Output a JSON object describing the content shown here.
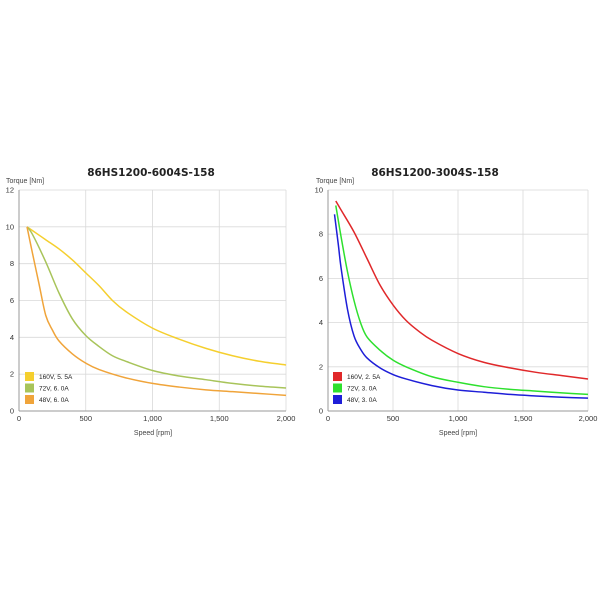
{
  "chart_data": [
    {
      "type": "line",
      "title": "86HS1200-6004S-158",
      "xlabel": "Speed [rpm]",
      "ylabel": "Torque  [Nm]",
      "xlim": [
        0,
        2000
      ],
      "ylim": [
        0,
        12
      ],
      "xticks": [
        0,
        500,
        1000,
        1500,
        2000
      ],
      "xtick_labels": [
        "0",
        "500",
        "1,000",
        "1,500",
        "2,000"
      ],
      "yticks": [
        0,
        2,
        4,
        6,
        8,
        10,
        12
      ],
      "ytick_labels": [
        "0",
        "2",
        "4",
        "6",
        "8",
        "10",
        "12"
      ],
      "grid": true,
      "legend_position": "bottom-left",
      "series": [
        {
          "name": "160V, 5. 5A",
          "color": "#F5CF2E",
          "x": [
            60,
            100,
            200,
            300,
            400,
            500,
            600,
            700,
            800,
            1000,
            1200,
            1400,
            1600,
            1800,
            2000
          ],
          "y": [
            10.0,
            9.8,
            9.3,
            8.8,
            8.2,
            7.5,
            6.8,
            6.0,
            5.4,
            4.5,
            3.9,
            3.4,
            3.0,
            2.7,
            2.5
          ]
        },
        {
          "name": "72V, 6. 0A",
          "color": "#A8C45A",
          "x": [
            60,
            100,
            200,
            300,
            400,
            500,
            600,
            700,
            800,
            1000,
            1200,
            1400,
            1600,
            1800,
            2000
          ],
          "y": [
            10.0,
            9.6,
            8.1,
            6.4,
            5.0,
            4.1,
            3.5,
            3.0,
            2.7,
            2.2,
            1.9,
            1.7,
            1.5,
            1.35,
            1.25
          ]
        },
        {
          "name": "48V, 6. 0A",
          "color": "#F0A43A",
          "x": [
            60,
            100,
            150,
            200,
            250,
            300,
            400,
            500,
            600,
            800,
            1000,
            1200,
            1400,
            1600,
            1800,
            2000
          ],
          "y": [
            10.0,
            8.6,
            6.9,
            5.2,
            4.4,
            3.8,
            3.1,
            2.6,
            2.25,
            1.8,
            1.5,
            1.3,
            1.15,
            1.05,
            0.95,
            0.85
          ]
        }
      ]
    },
    {
      "type": "line",
      "title": "86HS1200-3004S-158",
      "xlabel": "Speed [rpm]",
      "ylabel": "Torque  [Nm]",
      "xlim": [
        0,
        2000
      ],
      "ylim": [
        0,
        10
      ],
      "xticks": [
        0,
        500,
        1000,
        1500,
        2000
      ],
      "xtick_labels": [
        "0",
        "500",
        "1,000",
        "1,500",
        "2,000"
      ],
      "yticks": [
        0,
        2,
        4,
        6,
        8,
        10
      ],
      "ytick_labels": [
        "0",
        "2",
        "4",
        "6",
        "8",
        "10"
      ],
      "grid": true,
      "legend_position": "bottom-left",
      "series": [
        {
          "name": "160V, 2. 5A",
          "color": "#E0282A",
          "x": [
            60,
            100,
            200,
            300,
            400,
            500,
            600,
            700,
            800,
            1000,
            1200,
            1400,
            1600,
            1800,
            2000
          ],
          "y": [
            9.5,
            9.1,
            8.1,
            6.9,
            5.7,
            4.8,
            4.1,
            3.6,
            3.2,
            2.6,
            2.2,
            1.95,
            1.75,
            1.6,
            1.45
          ]
        },
        {
          "name": "72V, 3. 0A",
          "color": "#2EE02E",
          "x": [
            60,
            100,
            150,
            200,
            250,
            300,
            400,
            500,
            600,
            800,
            1000,
            1200,
            1400,
            1600,
            1800,
            2000
          ],
          "y": [
            9.3,
            7.9,
            6.3,
            5.0,
            4.0,
            3.35,
            2.75,
            2.3,
            2.0,
            1.55,
            1.3,
            1.1,
            0.98,
            0.9,
            0.82,
            0.75
          ]
        },
        {
          "name": "48V, 3. 0A",
          "color": "#1E1ED8",
          "x": [
            50,
            80,
            100,
            150,
            200,
            250,
            300,
            400,
            500,
            600,
            800,
            1000,
            1200,
            1400,
            1600,
            1800,
            2000
          ],
          "y": [
            8.9,
            7.5,
            6.5,
            4.6,
            3.4,
            2.8,
            2.4,
            1.95,
            1.65,
            1.45,
            1.15,
            0.95,
            0.85,
            0.75,
            0.68,
            0.62,
            0.58
          ]
        }
      ]
    }
  ]
}
